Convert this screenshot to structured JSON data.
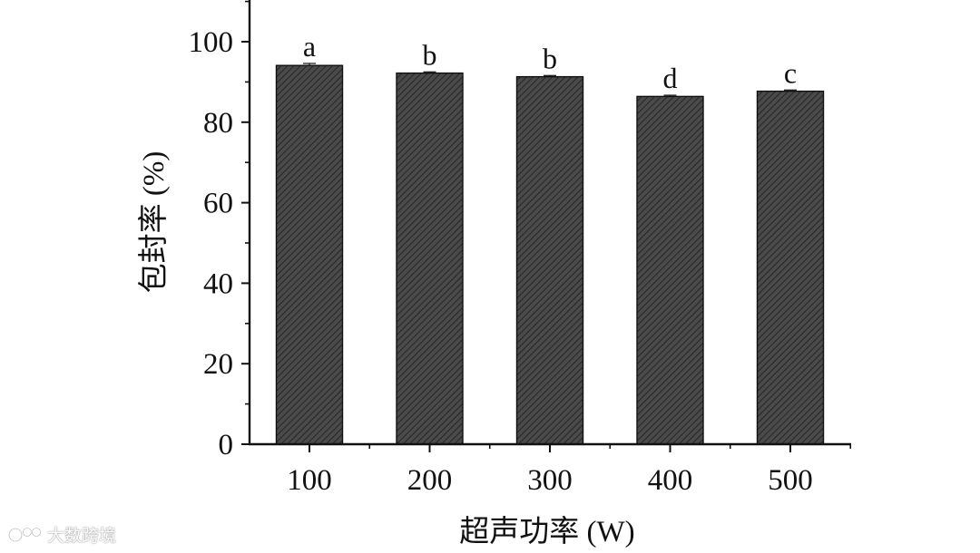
{
  "chart_data": {
    "type": "bar",
    "xlabel": "超声功率 (W)",
    "ylabel": "包封率 (%)",
    "categories": [
      "100",
      "200",
      "300",
      "400",
      "500"
    ],
    "values": [
      94.1,
      92.2,
      91.3,
      86.4,
      87.7
    ],
    "errors": [
      0.5,
      0.3,
      0.3,
      0.3,
      0.3
    ],
    "significance_labels": [
      "a",
      "b",
      "b",
      "d",
      "c"
    ],
    "ylim": [
      0,
      110
    ],
    "yticks": [
      0,
      20,
      40,
      60,
      80,
      100
    ],
    "grid": false,
    "legend": "none",
    "bar_color": "#4a4a4a",
    "hatch_color": "#1c1c1c",
    "axis_color": "#111111"
  },
  "watermark": {
    "text": "大数跨境"
  }
}
